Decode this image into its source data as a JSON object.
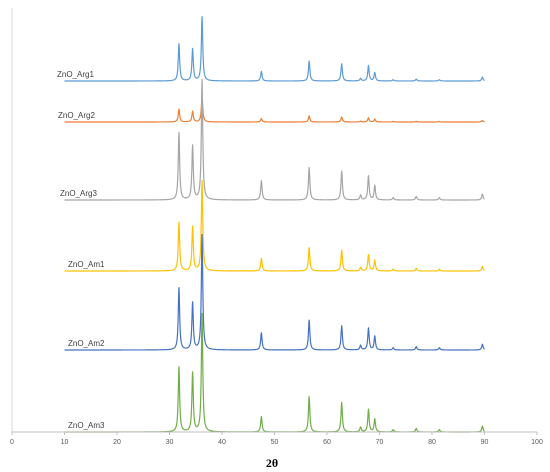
{
  "chart_data": {
    "type": "line",
    "title": "",
    "xlabel": "2θ",
    "ylabel": "",
    "xlim": [
      0,
      100
    ],
    "xticks": [
      0,
      10,
      20,
      30,
      40,
      50,
      60,
      70,
      80,
      90,
      100
    ],
    "grid": false,
    "legend": "none (labels beside each trace)",
    "peaks_2theta": [
      31.8,
      34.4,
      36.2,
      47.5,
      56.6,
      62.8,
      66.4,
      67.9,
      69.1,
      72.6,
      77.0,
      81.4,
      89.6
    ],
    "series": [
      {
        "name": "ZnO_Arg1",
        "color": "#5B9BD5",
        "intensities": [
          0.58,
          0.5,
          1.0,
          0.15,
          0.31,
          0.27,
          0.04,
          0.24,
          0.13,
          0.02,
          0.03,
          0.02,
          0.06
        ]
      },
      {
        "name": "ZnO_Arg2",
        "color": "#ED7D31",
        "intensities": [
          0.46,
          0.38,
          0.9,
          0.12,
          0.22,
          0.18,
          0.03,
          0.15,
          0.1,
          0.02,
          0.02,
          0.02,
          0.05
        ]
      },
      {
        "name": "ZnO_Arg3",
        "color": "#A5A5A5",
        "intensities": [
          0.56,
          0.45,
          1.0,
          0.16,
          0.27,
          0.24,
          0.04,
          0.2,
          0.12,
          0.02,
          0.03,
          0.02,
          0.05
        ]
      },
      {
        "name": "ZnO_Am1",
        "color": "#FFC000",
        "intensities": [
          0.54,
          0.49,
          1.0,
          0.14,
          0.26,
          0.23,
          0.04,
          0.18,
          0.12,
          0.02,
          0.03,
          0.02,
          0.05
        ]
      },
      {
        "name": "ZnO_Am2",
        "color": "#4472C4",
        "intensities": [
          0.54,
          0.41,
          1.0,
          0.15,
          0.26,
          0.21,
          0.04,
          0.19,
          0.12,
          0.02,
          0.03,
          0.02,
          0.05
        ]
      },
      {
        "name": "ZnO_Am3",
        "color": "#70AD47",
        "intensities": [
          0.55,
          0.5,
          1.0,
          0.13,
          0.3,
          0.25,
          0.04,
          0.19,
          0.11,
          0.02,
          0.03,
          0.02,
          0.05
        ]
      }
    ]
  }
}
